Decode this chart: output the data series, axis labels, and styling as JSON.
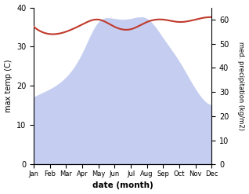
{
  "months": [
    "Jan",
    "Feb",
    "Mar",
    "Apr",
    "May",
    "Jun",
    "Jul",
    "Aug",
    "Sep",
    "Oct",
    "Nov",
    "Dec"
  ],
  "temp": [
    17,
    19,
    22,
    28,
    36,
    37,
    37,
    37,
    32,
    26,
    19,
    15
  ],
  "precip": [
    57,
    54,
    55,
    58,
    60,
    57,
    56,
    59,
    60,
    59,
    60,
    61
  ],
  "temp_color": "#c0392b",
  "precip_fill_color": "#c5cef0",
  "ylabel_left": "max temp (C)",
  "ylabel_right": "med. precipitation (kg/m2)",
  "xlabel": "date (month)",
  "ylim_left": [
    0,
    40
  ],
  "ylim_right": [
    0,
    65
  ],
  "yticks_left": [
    0,
    10,
    20,
    30,
    40
  ],
  "yticks_right": [
    0,
    10,
    20,
    30,
    40,
    50,
    60
  ],
  "bg_color": "#ffffff"
}
